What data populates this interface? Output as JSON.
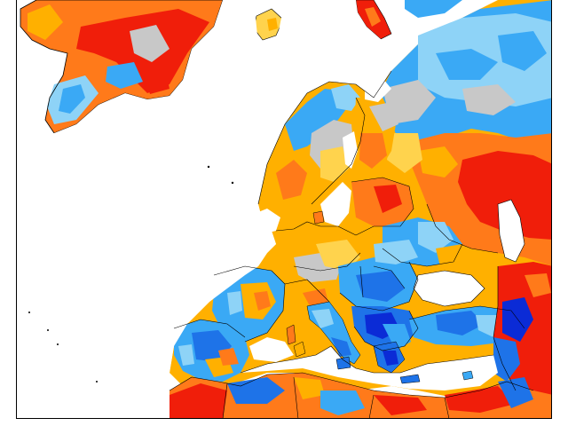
{
  "map": {
    "type": "anomaly-map",
    "region": "Europe",
    "palette": {
      "strong_negative": "#0b2bd6",
      "negative": "#1e73e8",
      "weak_negative": "#3aa9f5",
      "slight_negative": "#8ed3f7",
      "neutral": "#c8c8c8",
      "slight_positive": "#ffd34d",
      "weak_positive": "#ffb000",
      "positive": "#ff7a1a",
      "strong_positive": "#f01e0a",
      "sea": "#ffffff",
      "border": "#000000"
    }
  }
}
